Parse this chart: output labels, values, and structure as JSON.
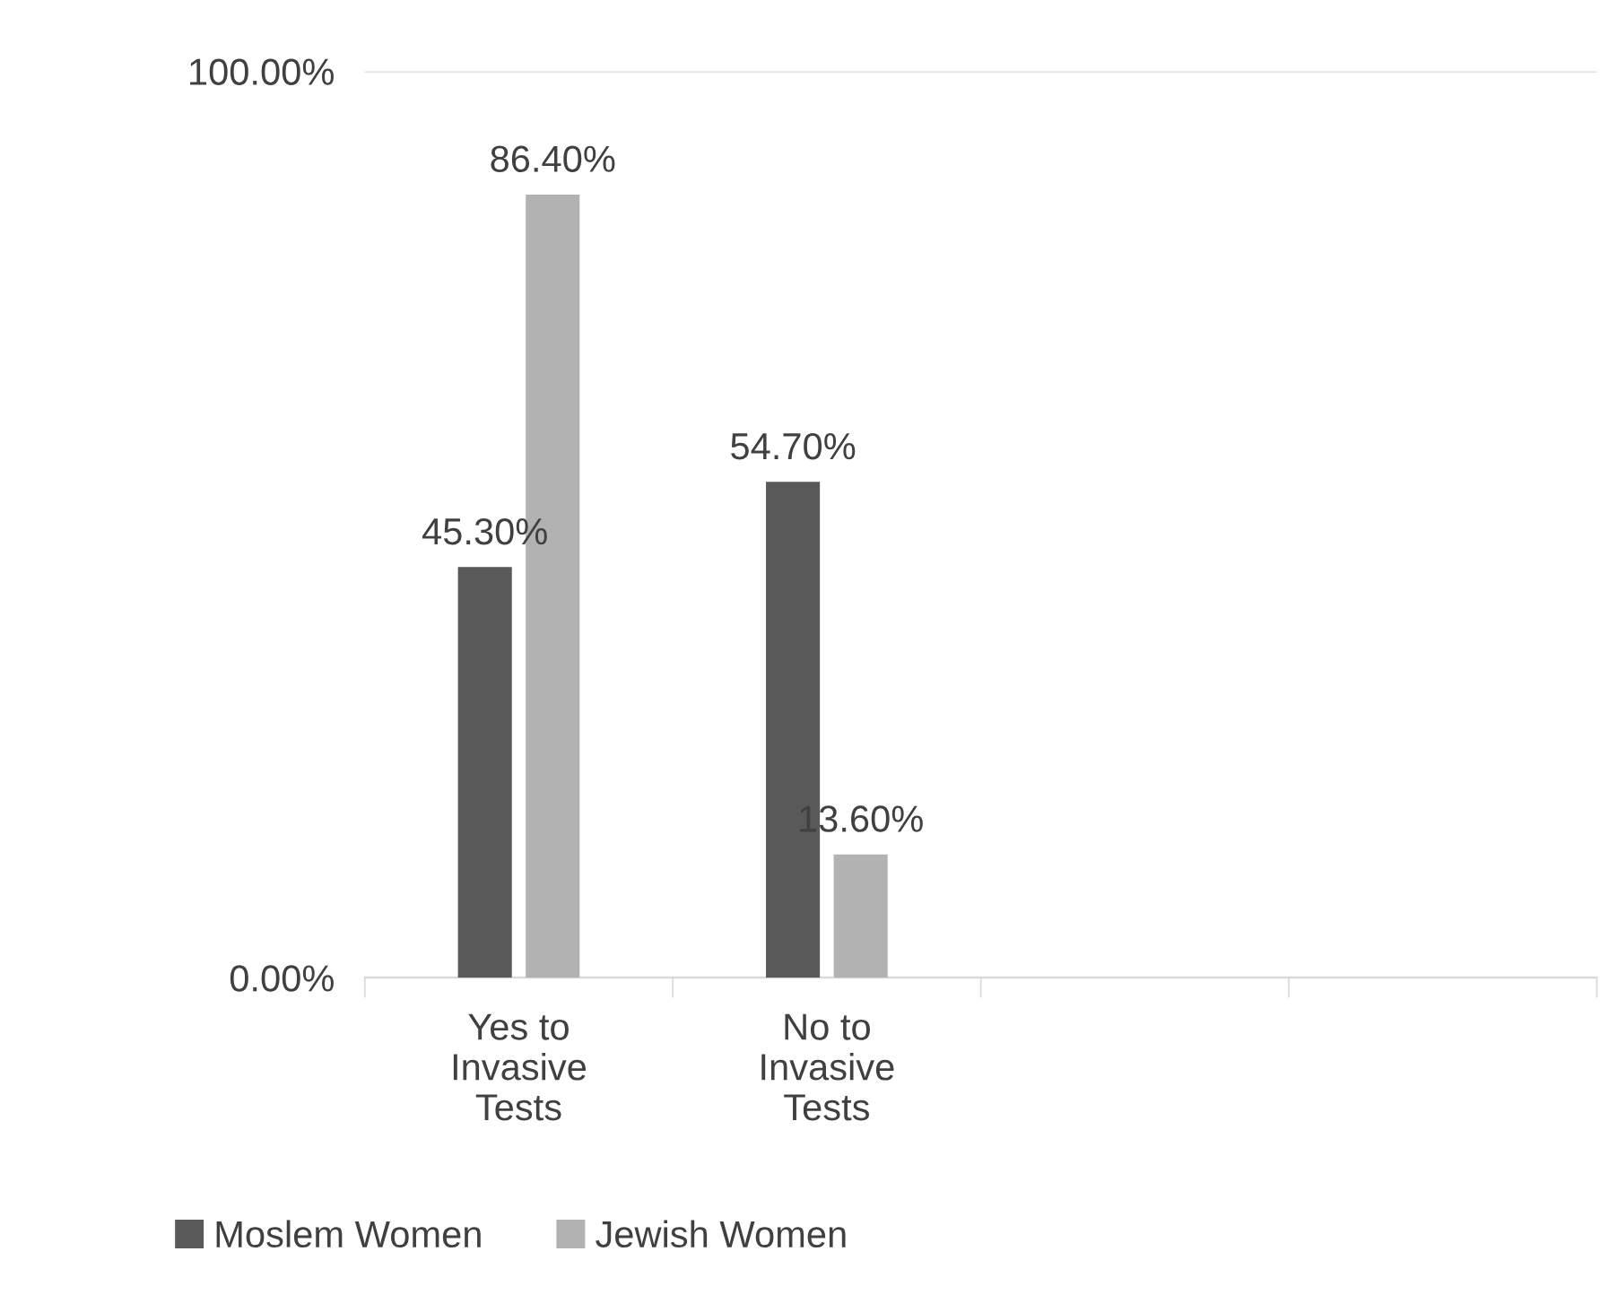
{
  "chart_data": {
    "type": "bar",
    "categories": [
      "Yes to\nInvasive\nTests",
      "No to\nInvasive\nTests",
      null,
      null
    ],
    "series": [
      {
        "name": "Moslem Women",
        "color": "#595959",
        "values": [
          45.3,
          54.7,
          null,
          null
        ],
        "value_labels": [
          "45.30%",
          "54.70%",
          null,
          null
        ]
      },
      {
        "name": "Jewish Women",
        "color": "#b2b2b2",
        "values": [
          86.4,
          13.6,
          null,
          null
        ],
        "value_labels": [
          "86.40%",
          "13.60%",
          null,
          null
        ]
      }
    ],
    "ylim": [
      0,
      100
    ],
    "yticks": [
      {
        "value": 0,
        "label": "0.00%"
      },
      {
        "value": 100,
        "label": "100.00%"
      }
    ],
    "grid": "y",
    "legend": "bottom"
  }
}
